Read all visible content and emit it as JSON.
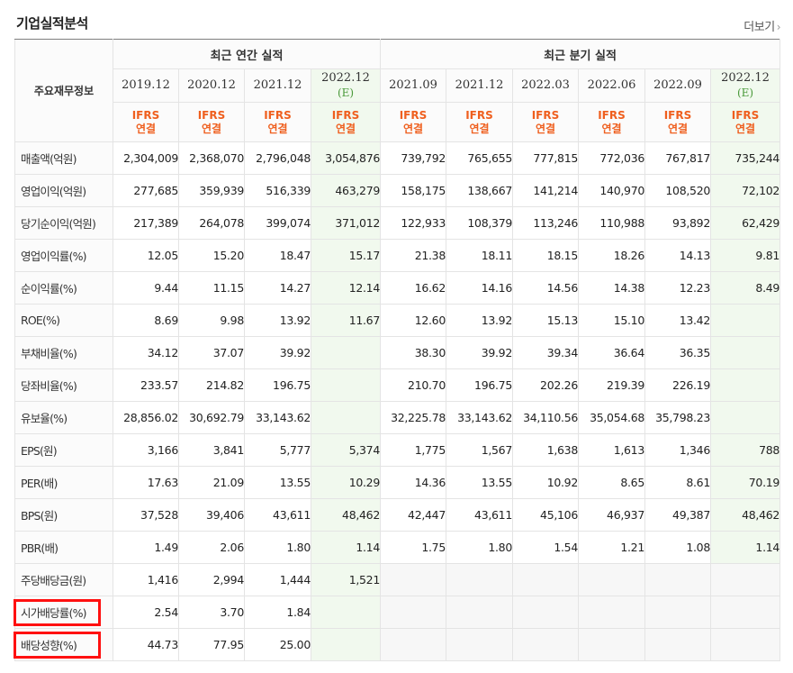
{
  "header": {
    "title": "기업실적분석",
    "more_label": "더보기",
    "more_icon": "chevron-right-icon"
  },
  "table": {
    "row_header_label": "주요재무정보",
    "group_annual": "최근 연간 실적",
    "group_quarter": "최근 분기 실적",
    "ifrs_line1": "IFRS",
    "ifrs_line2": "연결",
    "estimate_mark": "(E)",
    "annual_periods": [
      "2019.12",
      "2020.12",
      "2021.12",
      "2022.12"
    ],
    "quarter_periods": [
      "2021.09",
      "2021.12",
      "2022.03",
      "2022.06",
      "2022.09",
      "2022.12"
    ],
    "rows": [
      {
        "label": "매출액(억원)",
        "values": [
          "2,304,009",
          "2,368,070",
          "2,796,048",
          "3,054,876",
          "739,792",
          "765,655",
          "777,815",
          "772,036",
          "767,817",
          "735,244"
        ]
      },
      {
        "label": "영업이익(억원)",
        "values": [
          "277,685",
          "359,939",
          "516,339",
          "463,279",
          "158,175",
          "138,667",
          "141,214",
          "140,970",
          "108,520",
          "72,102"
        ]
      },
      {
        "label": "당기순이익(억원)",
        "values": [
          "217,389",
          "264,078",
          "399,074",
          "371,012",
          "122,933",
          "108,379",
          "113,246",
          "110,988",
          "93,892",
          "62,429"
        ]
      },
      {
        "label": "영업이익률(%)",
        "values": [
          "12.05",
          "15.20",
          "18.47",
          "15.17",
          "21.38",
          "18.11",
          "18.15",
          "18.26",
          "14.13",
          "9.81"
        ]
      },
      {
        "label": "순이익률(%)",
        "values": [
          "9.44",
          "11.15",
          "14.27",
          "12.14",
          "16.62",
          "14.16",
          "14.56",
          "14.38",
          "12.23",
          "8.49"
        ]
      },
      {
        "label": "ROE(%)",
        "values": [
          "8.69",
          "9.98",
          "13.92",
          "11.67",
          "12.60",
          "13.92",
          "15.13",
          "15.10",
          "13.42",
          ""
        ]
      },
      {
        "label": "부채비율(%)",
        "values": [
          "34.12",
          "37.07",
          "39.92",
          "",
          "38.30",
          "39.92",
          "39.34",
          "36.64",
          "36.35",
          ""
        ]
      },
      {
        "label": "당좌비율(%)",
        "values": [
          "233.57",
          "214.82",
          "196.75",
          "",
          "210.70",
          "196.75",
          "202.26",
          "219.39",
          "226.19",
          ""
        ]
      },
      {
        "label": "유보율(%)",
        "values": [
          "28,856.02",
          "30,692.79",
          "33,143.62",
          "",
          "32,225.78",
          "33,143.62",
          "34,110.56",
          "35,054.68",
          "35,798.23",
          ""
        ]
      },
      {
        "label": "EPS(원)",
        "values": [
          "3,166",
          "3,841",
          "5,777",
          "5,374",
          "1,775",
          "1,567",
          "1,638",
          "1,613",
          "1,346",
          "788"
        ]
      },
      {
        "label": "PER(배)",
        "values": [
          "17.63",
          "21.09",
          "13.55",
          "10.29",
          "14.36",
          "13.55",
          "10.92",
          "8.65",
          "8.61",
          "70.19"
        ]
      },
      {
        "label": "BPS(원)",
        "values": [
          "37,528",
          "39,406",
          "43,611",
          "48,462",
          "42,447",
          "43,611",
          "45,106",
          "46,937",
          "49,387",
          "48,462"
        ]
      },
      {
        "label": "PBR(배)",
        "values": [
          "1.49",
          "2.06",
          "1.80",
          "1.14",
          "1.75",
          "1.80",
          "1.54",
          "1.21",
          "1.08",
          "1.14"
        ]
      },
      {
        "label": "주당배당금(원)",
        "values": [
          "1,416",
          "2,994",
          "1,444",
          "1,521",
          "",
          "",
          "",
          "",
          "",
          ""
        ]
      },
      {
        "label": "시가배당률(%)",
        "values": [
          "2.54",
          "3.70",
          "1.84",
          "",
          "",
          "",
          "",
          "",
          "",
          ""
        ]
      },
      {
        "label": "배당성향(%)",
        "values": [
          "44.73",
          "77.95",
          "25.00",
          "",
          "",
          "",
          "",
          "",
          "",
          ""
        ]
      }
    ]
  },
  "highlight_color": "#ff1010",
  "highlighted_rows": [
    "시가배당률(%)",
    "배당성향(%)"
  ]
}
